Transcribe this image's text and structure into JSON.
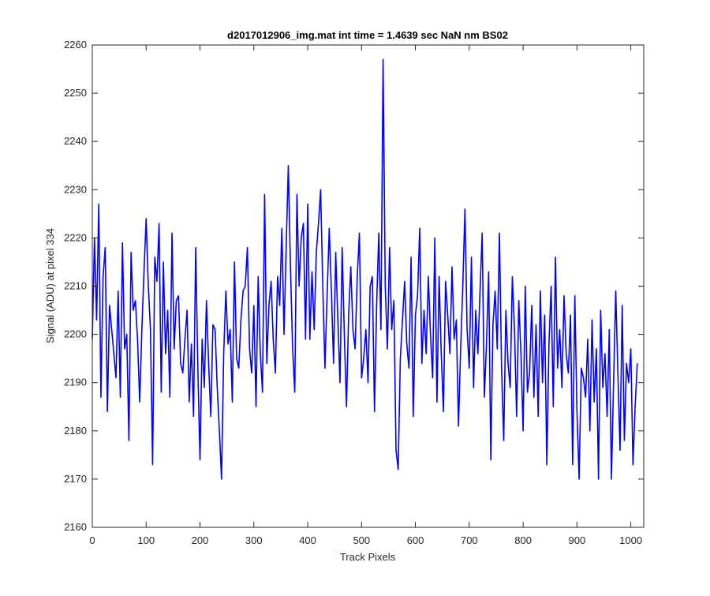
{
  "chart_data": {
    "type": "line",
    "title": "d2017012906_img.mat int time = 1.4639 sec  NaN nm BS02",
    "xlabel": "Track Pixels",
    "ylabel": "Signal (ADU) at pixel 334",
    "xlim": [
      0,
      1024
    ],
    "ylim": [
      2160,
      2260
    ],
    "xticks": [
      0,
      100,
      200,
      300,
      400,
      500,
      600,
      700,
      800,
      900,
      1000
    ],
    "yticks": [
      2160,
      2170,
      2180,
      2190,
      2200,
      2210,
      2220,
      2230,
      2240,
      2250,
      2260
    ],
    "grid": false,
    "series_color": "#0000ff",
    "series": [
      {
        "x_start": 0,
        "x_step": 4,
        "values": [
          2199,
          2220,
          2203,
          2227,
          2187,
          2212,
          2218,
          2184,
          2206,
          2201,
          2196,
          2191,
          2209,
          2187,
          2219,
          2197,
          2200,
          2178,
          2217,
          2205,
          2207,
          2199,
          2186,
          2201,
          2213,
          2224,
          2210,
          2201,
          2173,
          2216,
          2211,
          2223,
          2188,
          2215,
          2196,
          2205,
          2187,
          2221,
          2197,
          2207,
          2208,
          2194,
          2192,
          2199,
          2205,
          2186,
          2198,
          2183,
          2218,
          2193,
          2174,
          2199,
          2189,
          2207,
          2194,
          2183,
          2202,
          2201,
          2189,
          2180,
          2170,
          2196,
          2209,
          2198,
          2201,
          2186,
          2215,
          2195,
          2193,
          2203,
          2209,
          2210,
          2218,
          2197,
          2192,
          2206,
          2185,
          2212,
          2196,
          2188,
          2229,
          2194,
          2206,
          2211,
          2199,
          2192,
          2212,
          2206,
          2222,
          2200,
          2218,
          2235,
          2214,
          2197,
          2188,
          2229,
          2210,
          2220,
          2223,
          2199,
          2227,
          2199,
          2213,
          2201,
          2217,
          2223,
          2230,
          2210,
          2193,
          2208,
          2222,
          2209,
          2194,
          2217,
          2203,
          2190,
          2218,
          2200,
          2185,
          2204,
          2214,
          2201,
          2197,
          2212,
          2221,
          2191,
          2195,
          2201,
          2190,
          2210,
          2212,
          2184,
          2206,
          2221,
          2201,
          2257,
          2210,
          2197,
          2218,
          2201,
          2207,
          2176,
          2172,
          2195,
          2203,
          2211,
          2198,
          2193,
          2216,
          2183,
          2204,
          2208,
          2222,
          2194,
          2205,
          2196,
          2212,
          2200,
          2191,
          2220,
          2186,
          2212,
          2196,
          2184,
          2211,
          2204,
          2196,
          2214,
          2199,
          2203,
          2181,
          2197,
          2210,
          2226,
          2201,
          2193,
          2216,
          2189,
          2205,
          2196,
          2209,
          2221,
          2187,
          2198,
          2213,
          2174,
          2202,
          2209,
          2197,
          2221,
          2193,
          2178,
          2205,
          2194,
          2189,
          2212,
          2201,
          2183,
          2207,
          2196,
          2180,
          2210,
          2188,
          2192,
          2206,
          2187,
          2202,
          2183,
          2209,
          2190,
          2204,
          2173,
          2198,
          2210,
          2185,
          2216,
          2193,
          2201,
          2189,
          2208,
          2196,
          2192,
          2204,
          2173,
          2208,
          2184,
          2170,
          2193,
          2191,
          2187,
          2199,
          2180,
          2203,
          2186,
          2197,
          2170,
          2205,
          2189,
          2196,
          2183,
          2201,
          2170,
          2190,
          2209,
          2192,
          2176,
          2206,
          2178,
          2194,
          2190,
          2197,
          2173,
          2185,
          2194
        ]
      }
    ]
  }
}
